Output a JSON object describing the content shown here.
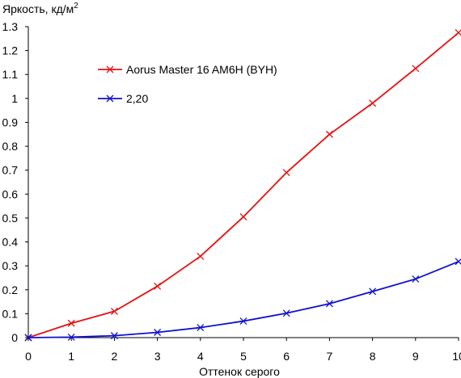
{
  "chart_data": {
    "type": "line",
    "title": "",
    "ylabel": "Яркость, кд/м",
    "ylabel_sup": "2",
    "xlabel": "Оттенок серого",
    "x": [
      0,
      1,
      2,
      3,
      4,
      5,
      6,
      7,
      8,
      9,
      10
    ],
    "xlim": [
      0,
      10
    ],
    "ylim": [
      0,
      1.3
    ],
    "xticks": [
      "0",
      "1",
      "2",
      "3",
      "4",
      "5",
      "6",
      "7",
      "8",
      "9",
      "10"
    ],
    "yticks": [
      "0",
      "0.1",
      "0.2",
      "0.3",
      "0.4",
      "0.5",
      "0.6",
      "0.7",
      "0.8",
      "0.9",
      "1",
      "1.1",
      "1.2",
      "1.3"
    ],
    "grid": false,
    "legend_position": "upper-left-inside",
    "series": [
      {
        "name": "Aorus Master 16 AM6H (BYH)",
        "color": "#e81010",
        "marker": "x",
        "values": [
          0,
          0.06,
          0.11,
          0.215,
          0.34,
          0.505,
          0.69,
          0.85,
          0.98,
          1.125,
          1.275
        ]
      },
      {
        "name": "2,20",
        "color": "#1010d0",
        "marker": "x",
        "values": [
          0,
          0.002,
          0.008,
          0.022,
          0.042,
          0.069,
          0.102,
          0.142,
          0.193,
          0.245,
          0.318
        ]
      }
    ]
  }
}
